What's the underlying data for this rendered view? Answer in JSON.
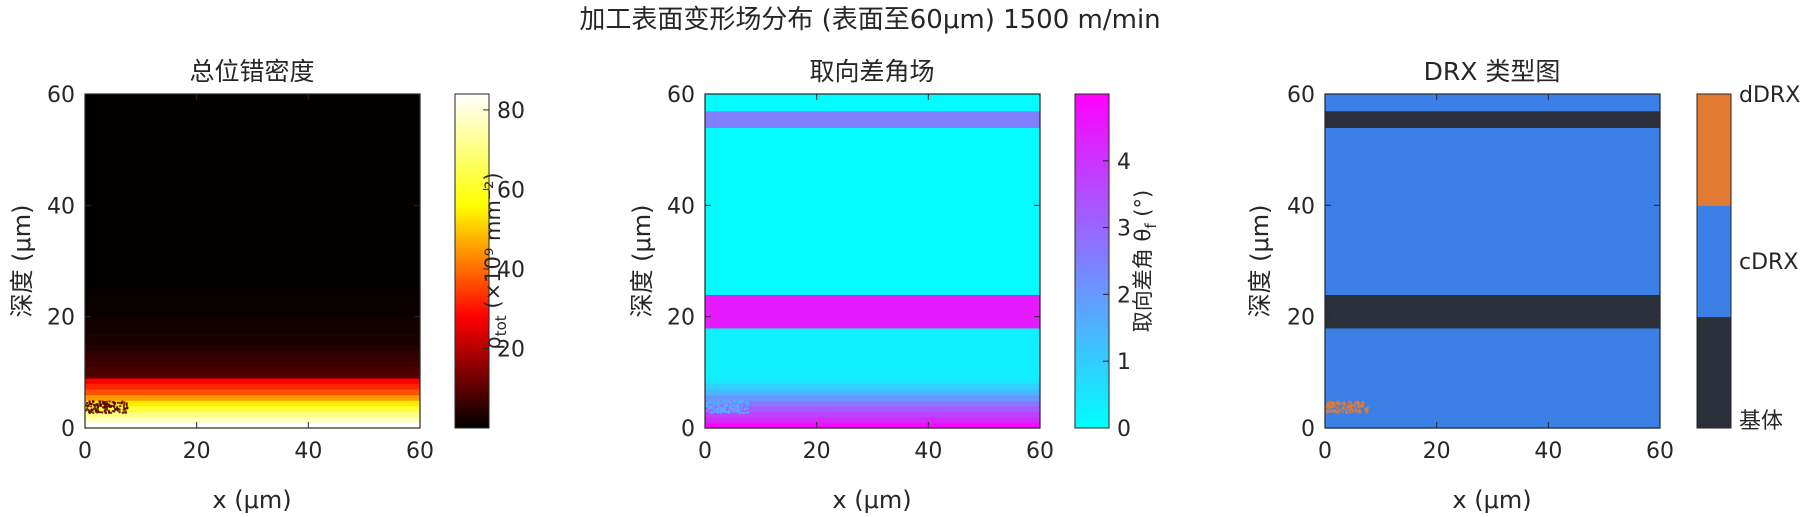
{
  "title": "加工表面变形场分布 (表面至60μm)   1500 m/min",
  "colors": {
    "hot_colormap": [
      "#000000",
      "#ff0000",
      "#ffff00",
      "#ffffff"
    ],
    "cool_colormap": [
      "#00ffff",
      "#ff00ff"
    ],
    "drx_base": "#2a2f3a",
    "drx_cdrx": "#3a80e6",
    "drx_ddrx": "#e37a34"
  },
  "chart_data": [
    {
      "type": "heatmap",
      "title": "总位错密度",
      "xlabel": "x (μm)",
      "ylabel": "深度 (μm)",
      "xlim": [
        0,
        60
      ],
      "ylim": [
        0,
        60
      ],
      "xticks": [
        "0",
        "20",
        "40",
        "60"
      ],
      "yticks": [
        "0",
        "20",
        "40",
        "60"
      ],
      "colorbar": {
        "label": "ρ_tot (×10⁹ mm⁻²)",
        "label_main": "ρ",
        "label_sub": "tot",
        "label_rest": " (×10⁹ mm⁻²)",
        "range": [
          0,
          84
        ],
        "ticks": [
          "20",
          "40",
          "60",
          "80"
        ],
        "colormap": "hot"
      },
      "depth_profile": [
        {
          "depth": [
            0,
            1
          ],
          "value": 84
        },
        {
          "depth": [
            1,
            2
          ],
          "value": 78
        },
        {
          "depth": [
            2,
            3
          ],
          "value": 70
        },
        {
          "depth": [
            3,
            4
          ],
          "value": 62
        },
        {
          "depth": [
            4,
            5
          ],
          "value": 54
        },
        {
          "depth": [
            5,
            6
          ],
          "value": 45
        },
        {
          "depth": [
            6,
            7
          ],
          "value": 37
        },
        {
          "depth": [
            7,
            8
          ],
          "value": 32
        },
        {
          "depth": [
            8,
            9
          ],
          "value": 28
        },
        {
          "depth": [
            9,
            10
          ],
          "value": 9
        },
        {
          "depth": [
            10,
            11
          ],
          "value": 8
        },
        {
          "depth": [
            11,
            12
          ],
          "value": 7
        },
        {
          "depth": [
            12,
            13
          ],
          "value": 6
        },
        {
          "depth": [
            13,
            14
          ],
          "value": 5
        },
        {
          "depth": [
            14,
            15
          ],
          "value": 4
        },
        {
          "depth": [
            15,
            17
          ],
          "value": 3
        },
        {
          "depth": [
            17,
            20
          ],
          "value": 2
        },
        {
          "depth": [
            20,
            25
          ],
          "value": 1
        },
        {
          "depth": [
            25,
            60
          ],
          "value": 0.3
        }
      ],
      "speckle_region": {
        "x": [
          0,
          8
        ],
        "depth": [
          2.5,
          5
        ],
        "value": 10
      }
    },
    {
      "type": "heatmap",
      "title": "取向差角场",
      "xlabel": "x (μm)",
      "ylabel": "深度 (μm)",
      "xlim": [
        0,
        60
      ],
      "ylim": [
        0,
        60
      ],
      "xticks": [
        "0",
        "20",
        "40",
        "60"
      ],
      "yticks": [
        "0",
        "20",
        "40",
        "60"
      ],
      "colorbar": {
        "label": "取向差角 θ_f (°)",
        "label_main": "取向差角 θ",
        "label_sub": "f",
        "label_rest": " (°)",
        "range": [
          0,
          5
        ],
        "ticks": [
          "0",
          "1",
          "2",
          "3",
          "4"
        ],
        "colormap": "cool"
      },
      "depth_profile": [
        {
          "depth": [
            0,
            1
          ],
          "value": 4.8
        },
        {
          "depth": [
            1,
            2
          ],
          "value": 4.2
        },
        {
          "depth": [
            2,
            3
          ],
          "value": 3.7
        },
        {
          "depth": [
            3,
            4
          ],
          "value": 3.2
        },
        {
          "depth": [
            4,
            5
          ],
          "value": 2.6
        },
        {
          "depth": [
            5,
            6
          ],
          "value": 2.0
        },
        {
          "depth": [
            6,
            7
          ],
          "value": 1.4
        },
        {
          "depth": [
            7,
            8
          ],
          "value": 0.9
        },
        {
          "depth": [
            8,
            9
          ],
          "value": 0.5
        },
        {
          "depth": [
            9,
            18
          ],
          "value": 0.3
        },
        {
          "depth": [
            18,
            24
          ],
          "value": 4.5
        },
        {
          "depth": [
            24,
            54
          ],
          "value": 0.1
        },
        {
          "depth": [
            54,
            57
          ],
          "value": 2.5
        },
        {
          "depth": [
            57,
            60
          ],
          "value": 0.1
        }
      ],
      "speckle_region": {
        "x": [
          0,
          8
        ],
        "depth": [
          2.5,
          5
        ],
        "value": 1.5
      }
    },
    {
      "type": "heatmap",
      "title": "DRX 类型图",
      "xlabel": "x (μm)",
      "ylabel": "深度 (μm)",
      "xlim": [
        0,
        60
      ],
      "ylim": [
        0,
        60
      ],
      "xticks": [
        "0",
        "20",
        "40",
        "60"
      ],
      "yticks": [
        "0",
        "20",
        "40",
        "60"
      ],
      "colorbar": {
        "categories": [
          "基体",
          "cDRX",
          "dDRX"
        ],
        "colormap": "categorical"
      },
      "depth_profile": [
        {
          "depth": [
            0,
            18
          ],
          "category": "cDRX"
        },
        {
          "depth": [
            18,
            24
          ],
          "category": "基体"
        },
        {
          "depth": [
            24,
            54
          ],
          "category": "cDRX"
        },
        {
          "depth": [
            54,
            57
          ],
          "category": "基体"
        },
        {
          "depth": [
            57,
            60
          ],
          "category": "cDRX"
        }
      ],
      "speckle_region": {
        "x": [
          0,
          8
        ],
        "depth": [
          2.5,
          5
        ],
        "category": "dDRX"
      }
    }
  ]
}
